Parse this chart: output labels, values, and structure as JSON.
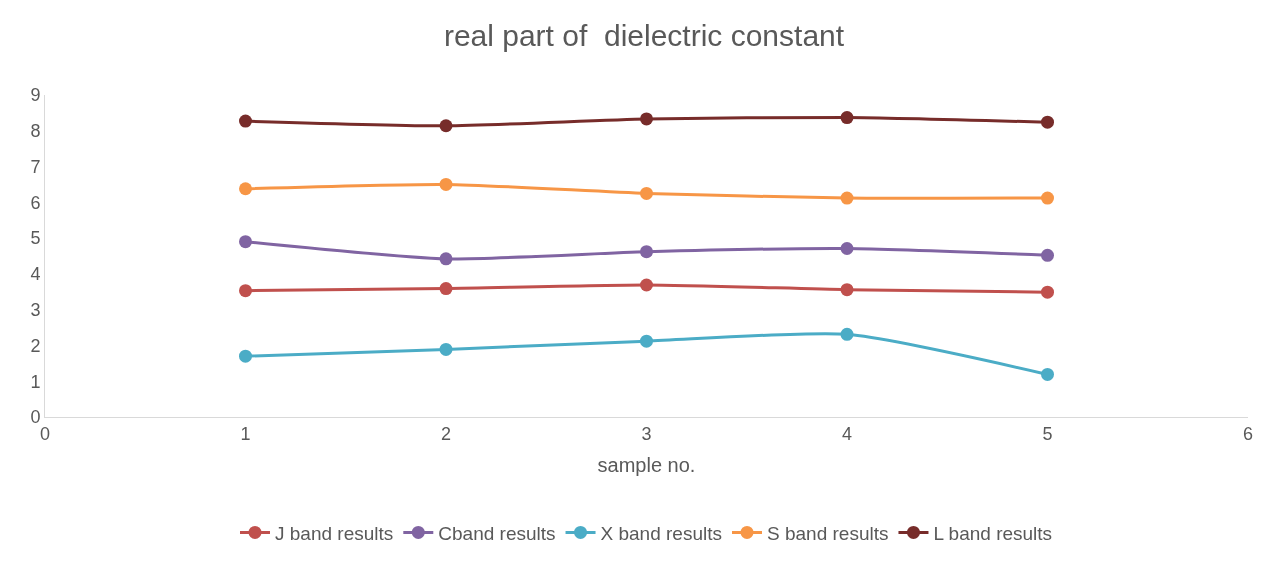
{
  "chart_data": {
    "type": "line",
    "title": "real part of  dielectric constant",
    "xlabel": "sample no.",
    "x": [
      1,
      2,
      3,
      4,
      5
    ],
    "series": [
      {
        "name": "J band results",
        "color": "#c0504d",
        "values": [
          3.53,
          3.59,
          3.69,
          3.56,
          3.49
        ]
      },
      {
        "name": "Cband results",
        "color": "#8064a2",
        "values": [
          4.9,
          4.42,
          4.62,
          4.71,
          4.52
        ]
      },
      {
        "name": "X band results",
        "color": "#4bacc6",
        "values": [
          1.7,
          1.89,
          2.12,
          2.31,
          1.19
        ]
      },
      {
        "name": "S band results",
        "color": "#f79646",
        "values": [
          6.38,
          6.5,
          6.25,
          6.12,
          6.12
        ]
      },
      {
        "name": "L band results",
        "color": "#772c2a",
        "values": [
          8.27,
          8.14,
          8.33,
          8.37,
          8.24
        ]
      }
    ],
    "xlim": [
      0,
      6
    ],
    "xticks": [
      0,
      1,
      2,
      3,
      4,
      5,
      6
    ],
    "ylim": [
      0,
      9
    ],
    "yticks": [
      0,
      1,
      2,
      3,
      4,
      5,
      6,
      7,
      8,
      9
    ],
    "legend": "bottom",
    "marker": "circle",
    "line_style": "solid"
  }
}
